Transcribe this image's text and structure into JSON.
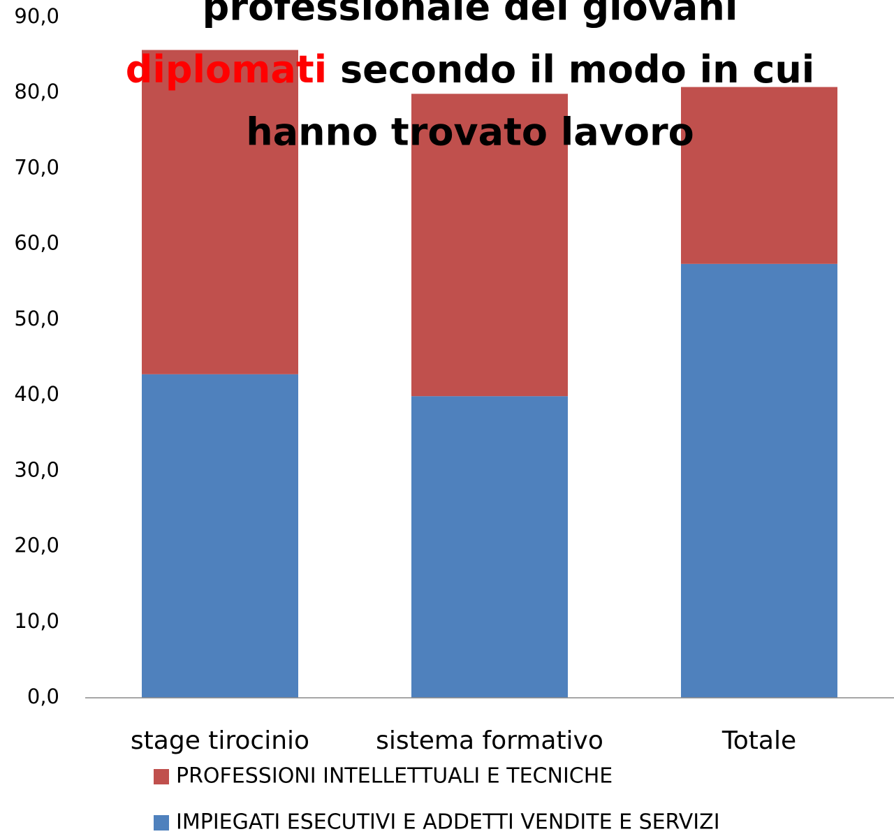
{
  "chart_data": {
    "type": "stacked_bar",
    "title_parts": [
      "professionale dei giovani",
      "diplomati",
      "secondo il modo in cui",
      "hanno trovato lavoro"
    ],
    "highlight_color": "#ff0000",
    "categories": [
      "stage tirocinio",
      "sistema formativo",
      "Totale"
    ],
    "series": [
      {
        "name": "IMPIEGATI ESECUTIVI E ADDETTI VENDITE E SERVIZI",
        "color": "#4f81bd",
        "values": [
          42.8,
          39.9,
          57.4
        ]
      },
      {
        "name": "PROFESSIONI INTELLETTUALI E TECNICHE",
        "color": "#c0504d",
        "values": [
          42.9,
          40.0,
          23.4
        ]
      }
    ],
    "ylim": [
      0,
      90
    ],
    "yticks": [
      {
        "value": 0,
        "label": "0,0"
      },
      {
        "value": 10,
        "label": "10,0"
      },
      {
        "value": 20,
        "label": "20,0"
      },
      {
        "value": 30,
        "label": "30,0"
      },
      {
        "value": 40,
        "label": "40,0"
      },
      {
        "value": 50,
        "label": "50,0"
      },
      {
        "value": 60,
        "label": "60,0"
      },
      {
        "value": 70,
        "label": "70,0"
      },
      {
        "value": 80,
        "label": "80,0"
      },
      {
        "value": 90,
        "label": "90,0"
      }
    ],
    "grid": false,
    "legend": "bottom"
  }
}
